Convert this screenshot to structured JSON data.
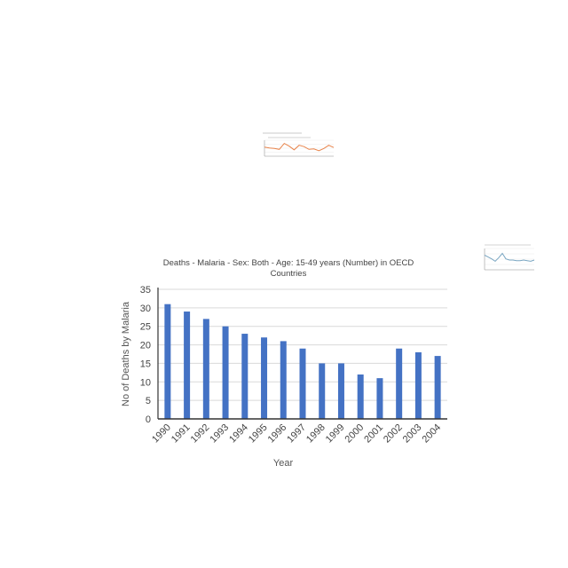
{
  "chart_data": [
    {
      "type": "bar",
      "title": "Deaths - Malaria - Sex: Both - Age: 15-49 years (Number) in OECD Countries",
      "title_lines": [
        "Deaths - Malaria - Sex: Both - Age: 15-49 years (Number) in OECD",
        "Countries"
      ],
      "xlabel": "Year",
      "ylabel": "No of Deaths by Malaria",
      "categories": [
        "1990",
        "1991",
        "1992",
        "1993",
        "1994",
        "1995",
        "1996",
        "1997",
        "1998",
        "1999",
        "2000",
        "2001",
        "2002",
        "2003",
        "2004"
      ],
      "values": [
        31,
        29,
        27,
        25,
        23,
        22,
        21,
        19,
        15,
        15,
        12,
        11,
        19,
        18,
        17
      ],
      "ylim": [
        0,
        35
      ],
      "yticks": [
        0,
        5,
        10,
        15,
        20,
        25,
        30,
        35
      ],
      "grid": true,
      "color": "#4472c4"
    },
    {
      "type": "line",
      "title": "",
      "xlabel": "",
      "ylabel": "",
      "values": [
        20,
        18,
        17,
        15,
        28,
        22,
        14,
        24,
        21,
        15,
        16,
        12,
        17,
        24,
        19
      ],
      "ylim": [
        0,
        35
      ],
      "grid": true,
      "color": "#e8834a"
    },
    {
      "type": "line",
      "title": "",
      "xlabel": "",
      "ylabel": "",
      "values": [
        24,
        21,
        18,
        14,
        20,
        27,
        18,
        16,
        16,
        15,
        15,
        16,
        15,
        14,
        16
      ],
      "ylim": [
        0,
        35
      ],
      "grid": true,
      "color": "#7aa6c2"
    }
  ]
}
